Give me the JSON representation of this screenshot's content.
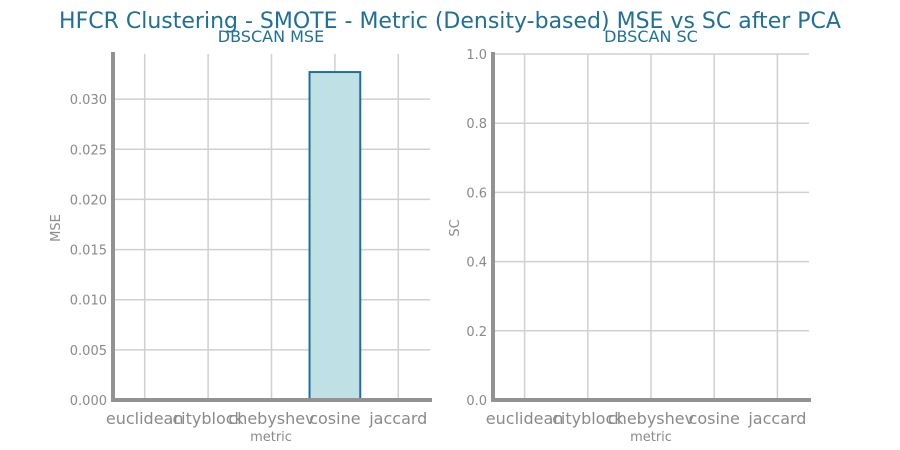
{
  "figure": {
    "title": "HFCR Clustering - SMOTE - Metric (Density-based) MSE vs SC after PCA"
  },
  "colors": {
    "title": "#1f6f98",
    "bar_fill": "#bfe0e4",
    "bar_edge": "#1f6f98",
    "grid": "#d0d0d0",
    "spine": "#929292",
    "tick_text": "#8a8a8a"
  },
  "chart_data": [
    {
      "type": "bar",
      "title": "DBSCAN MSE",
      "xlabel": "metric",
      "ylabel": "MSE",
      "categories": [
        "euclidean",
        "cityblock",
        "chebyshev",
        "cosine",
        "jaccard"
      ],
      "values": [
        null,
        null,
        null,
        0.0327,
        null
      ],
      "ylim": [
        0,
        0.0345
      ],
      "yticks": [
        0.0,
        0.005,
        0.01,
        0.015,
        0.02,
        0.025,
        0.03
      ],
      "ytick_labels": [
        "0.000",
        "0.005",
        "0.010",
        "0.015",
        "0.020",
        "0.025",
        "0.030"
      ],
      "grid": true
    },
    {
      "type": "bar",
      "title": "DBSCAN SC",
      "xlabel": "metric",
      "ylabel": "SC",
      "categories": [
        "euclidean",
        "cityblock",
        "chebyshev",
        "cosine",
        "jaccard"
      ],
      "values": [
        null,
        null,
        null,
        null,
        null
      ],
      "ylim": [
        0,
        1.0
      ],
      "yticks": [
        0.0,
        0.2,
        0.4,
        0.6,
        0.8,
        1.0
      ],
      "ytick_labels": [
        "0.0",
        "0.2",
        "0.4",
        "0.6",
        "0.8",
        "1.0"
      ],
      "grid": true
    }
  ]
}
